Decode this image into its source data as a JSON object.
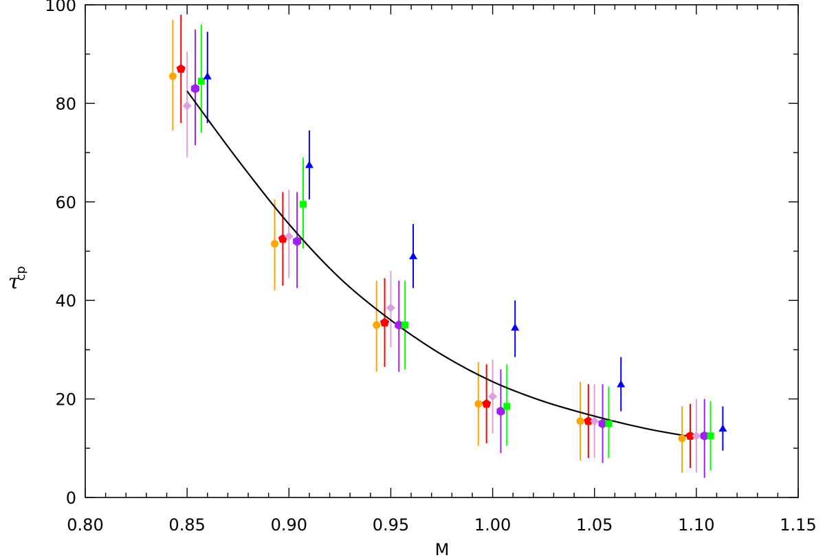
{
  "chart_data": {
    "type": "scatter",
    "title": "",
    "xlabel": "M",
    "ylabel_symbol": "τ",
    "ylabel_subscript": "cp",
    "xlim": [
      0.8,
      1.15
    ],
    "ylim": [
      0,
      100
    ],
    "x_ticks": [
      "0.80",
      "0.85",
      "0.90",
      "0.95",
      "1.00",
      "1.05",
      "1.10",
      "1.15"
    ],
    "y_ticks": [
      "0",
      "20",
      "40",
      "60",
      "80",
      "100"
    ],
    "grid": false,
    "series": [
      {
        "name": "orange-circles",
        "color": "#FFA500",
        "marker": "circle",
        "x": [
          0.843,
          0.893,
          0.943,
          0.993,
          1.043,
          1.093
        ],
        "y": [
          85.5,
          51.5,
          35.0,
          19.0,
          15.5,
          12.0
        ],
        "ylow": [
          74.5,
          42.0,
          25.5,
          10.5,
          7.5,
          5.0
        ],
        "yhigh": [
          97.0,
          60.5,
          44.0,
          27.5,
          23.5,
          18.5
        ]
      },
      {
        "name": "red-pentagons",
        "color": "#FF0000",
        "marker": "pentagon",
        "x": [
          0.847,
          0.897,
          0.947,
          0.997,
          1.047,
          1.097
        ],
        "y": [
          87.0,
          52.5,
          35.5,
          19.0,
          15.5,
          12.5
        ],
        "ylow": [
          76.0,
          43.0,
          26.5,
          11.0,
          8.0,
          6.0
        ],
        "yhigh": [
          98.0,
          62.0,
          44.5,
          27.0,
          23.0,
          19.0
        ]
      },
      {
        "name": "plum-diamonds",
        "color": "#DDA0DD",
        "marker": "diamond",
        "x": [
          0.85,
          0.9,
          0.95,
          1.0,
          1.05,
          1.1
        ],
        "y": [
          79.5,
          53.0,
          38.5,
          20.5,
          15.5,
          12.5
        ],
        "ylow": [
          69.0,
          44.5,
          30.5,
          13.0,
          8.0,
          5.0
        ],
        "yhigh": [
          90.5,
          62.5,
          46.0,
          28.0,
          23.0,
          20.0
        ]
      },
      {
        "name": "purple-hexagons",
        "color": "#A020F0",
        "marker": "hexagon",
        "x": [
          0.854,
          0.904,
          0.954,
          1.004,
          1.054,
          1.104
        ],
        "y": [
          83.0,
          52.0,
          35.0,
          17.5,
          15.0,
          12.5
        ],
        "ylow": [
          71.5,
          42.5,
          25.5,
          9.0,
          7.0,
          4.0
        ],
        "yhigh": [
          95.0,
          62.0,
          44.0,
          26.0,
          23.0,
          20.0
        ]
      },
      {
        "name": "green-squares",
        "color": "#00FF00",
        "marker": "square",
        "x": [
          0.857,
          0.907,
          0.957,
          1.007,
          1.057,
          1.107
        ],
        "y": [
          84.5,
          59.5,
          35.0,
          18.5,
          15.0,
          12.5
        ],
        "ylow": [
          74.0,
          50.5,
          26.0,
          10.5,
          8.0,
          5.5
        ],
        "yhigh": [
          96.0,
          69.0,
          44.0,
          27.0,
          22.5,
          19.5
        ]
      },
      {
        "name": "blue-triangles",
        "color": "#0000FF",
        "marker": "triangle",
        "x": [
          0.86,
          0.91,
          0.961,
          1.011,
          1.063,
          1.113
        ],
        "y": [
          85.5,
          67.5,
          49.0,
          34.5,
          23.0,
          14.0
        ],
        "ylow": [
          76.0,
          60.5,
          42.5,
          28.5,
          17.5,
          9.5
        ],
        "yhigh": [
          94.5,
          74.5,
          55.5,
          40.0,
          28.5,
          18.5
        ]
      }
    ],
    "fit_curve": {
      "name": "fit",
      "color": "#000000",
      "x": [
        0.85,
        0.875,
        0.9,
        0.925,
        0.95,
        0.975,
        1.0,
        1.025,
        1.05,
        1.075,
        1.095
      ],
      "y": [
        82.5,
        68.5,
        55.5,
        44.5,
        36.0,
        29.0,
        23.5,
        19.5,
        16.5,
        14.0,
        12.5
      ]
    }
  }
}
